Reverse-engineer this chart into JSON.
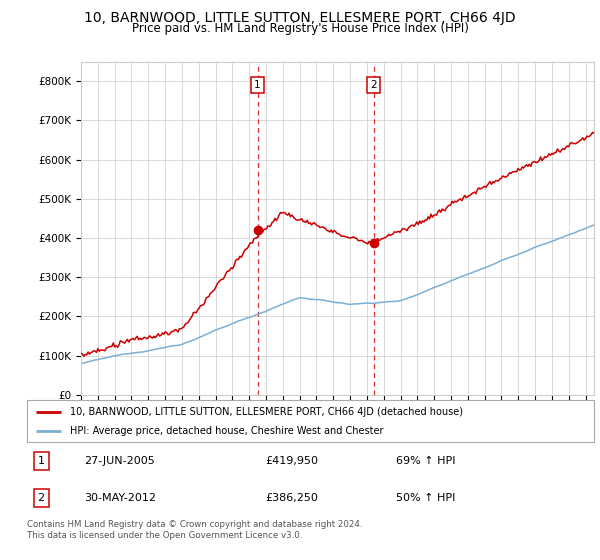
{
  "title": "10, BARNWOOD, LITTLE SUTTON, ELLESMERE PORT, CH66 4JD",
  "subtitle": "Price paid vs. HM Land Registry's House Price Index (HPI)",
  "title_fontsize": 10,
  "subtitle_fontsize": 8.5,
  "ylim": [
    0,
    850000
  ],
  "yticks": [
    0,
    100000,
    200000,
    300000,
    400000,
    500000,
    600000,
    700000,
    800000
  ],
  "ytick_labels": [
    "£0",
    "£100K",
    "£200K",
    "£300K",
    "£400K",
    "£500K",
    "£600K",
    "£700K",
    "£800K"
  ],
  "hpi_color": "#7bafd4",
  "price_color": "#cc0000",
  "marker1_x": 2005.5,
  "marker1_label": "1",
  "marker1_value": 419950,
  "marker1_date_str": "27-JUN-2005",
  "marker2_x": 2012.4,
  "marker2_label": "2",
  "marker2_value": 386250,
  "marker2_date_str": "30-MAY-2012",
  "legend_label_price": "10, BARNWOOD, LITTLE SUTTON, ELLESMERE PORT, CH66 4JD (detached house)",
  "legend_label_hpi": "HPI: Average price, detached house, Cheshire West and Chester",
  "footer1": "Contains HM Land Registry data © Crown copyright and database right 2024.",
  "footer2": "This data is licensed under the Open Government Licence v3.0.",
  "table_row1": [
    "1",
    "27-JUN-2005",
    "£419,950",
    "69% ↑ HPI"
  ],
  "table_row2": [
    "2",
    "30-MAY-2012",
    "£386,250",
    "50% ↑ HPI"
  ],
  "background_color": "#ffffff",
  "grid_color": "#cccccc",
  "xmin": 1995,
  "xmax": 2025.5
}
